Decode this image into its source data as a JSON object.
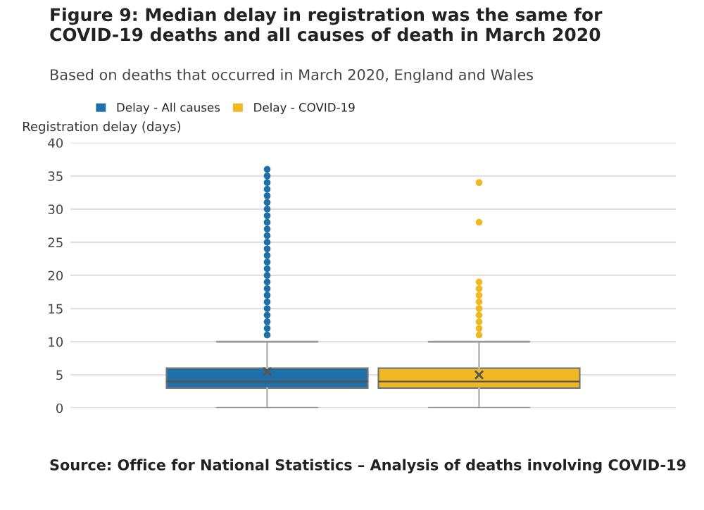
{
  "chart_data": {
    "type": "box",
    "title": "Figure 9: Median delay in registration was the same for COVID-19 deaths and all causes of death in March 2020",
    "subtitle": "Based on deaths that occurred in March 2020, England and Wales",
    "ylabel": "Registration delay (days)",
    "categories": [
      null
    ],
    "ylim": [
      0,
      40
    ],
    "yticks": [
      0,
      5,
      10,
      15,
      20,
      25,
      30,
      35,
      40
    ],
    "grid": "y",
    "legend": "top left",
    "annotations": [
      "Source: Office for National Statistics – Analysis of deaths involving COVID-19"
    ],
    "series": [
      {
        "name": "Delay - All causes",
        "color": "#1f6fa8",
        "boxes": [
          {
            "low": 0,
            "q1": 3,
            "median": 4,
            "q3": 6,
            "high": 10,
            "mean": 5.5,
            "outliers": [
              11,
              12,
              13,
              14,
              15,
              16,
              17,
              18,
              19,
              20,
              21,
              22,
              23,
              24,
              25,
              26,
              27,
              28,
              29,
              30,
              31,
              32,
              33,
              34,
              35,
              36
            ]
          }
        ]
      },
      {
        "name": "Delay - COVID-19",
        "color": "#f0b823",
        "boxes": [
          {
            "low": 0,
            "q1": 3,
            "median": 4,
            "q3": 6,
            "high": 10,
            "mean": 5,
            "outliers": [
              11,
              12,
              13,
              14,
              15,
              16,
              17,
              18,
              19,
              28,
              34
            ]
          }
        ]
      }
    ]
  }
}
